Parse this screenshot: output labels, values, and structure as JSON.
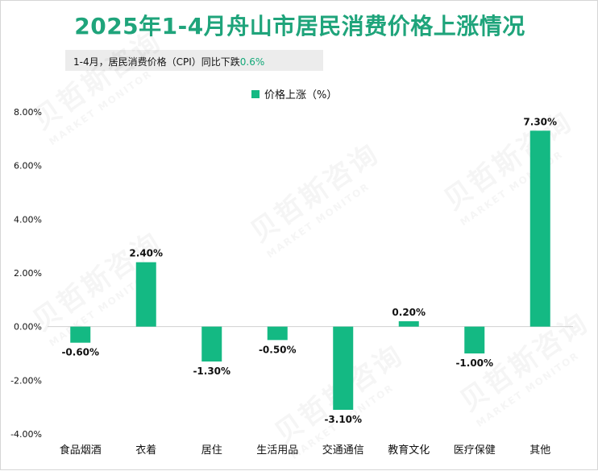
{
  "page": {
    "title": "2025年1-4月舟山市居民消费价格上涨情况",
    "subtitle_prefix": "1-4月，居民消费价格（CPI）同比下跌",
    "subtitle_value": "0.6%"
  },
  "watermark": {
    "brand": "贝哲斯咨询",
    "brand_en": "MARKET MONITOR"
  },
  "chart_data": {
    "type": "bar",
    "title": "2025年1-4月舟山市居民消费价格上涨情况",
    "subtitle": "1-4月，居民消费价格（CPI）同比下跌0.6%",
    "categories": [
      "食品烟酒",
      "衣着",
      "居住",
      "生活用品",
      "交通通信",
      "教育文化",
      "医疗保健",
      "其他"
    ],
    "series": [
      {
        "name": "价格上涨（%）",
        "values": [
          -0.6,
          2.4,
          -1.3,
          -0.5,
          -3.1,
          0.2,
          -1.0,
          7.3
        ],
        "labels": [
          "-0.60%",
          "2.40%",
          "-1.30%",
          "-0.50%",
          "-3.10%",
          "0.20%",
          "-1.00%",
          "7.30%"
        ]
      }
    ],
    "ylim": [
      -4,
      8
    ],
    "yticks": [
      8,
      6,
      4,
      2,
      0,
      -2,
      -4
    ],
    "ytick_labels": [
      "8.00%",
      "6.00%",
      "4.00%",
      "2.00%",
      "0.00%",
      "-2.00%",
      "-4.00%"
    ],
    "legend_position": "top-center",
    "grid": false,
    "colors": {
      "bar": "#14b983",
      "axis": "#d0d0d0",
      "title": "#1fa47b"
    }
  }
}
